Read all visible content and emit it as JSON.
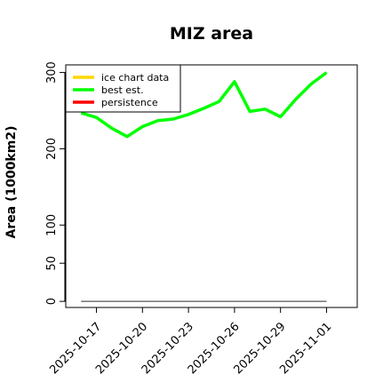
{
  "chart_data": {
    "type": "line",
    "title": "MIZ area",
    "xlabel": "",
    "ylabel": "Area (1000km2)",
    "x_ticks": [
      "2025-10-17",
      "2025-10-20",
      "2025-10-23",
      "2025-10-26",
      "2025-10-29",
      "2025-11-01"
    ],
    "y_ticks": [
      0,
      50,
      100,
      200,
      300
    ],
    "xlim": [
      "2025-10-15",
      "2025-11-03"
    ],
    "ylim": [
      -8,
      310
    ],
    "grid": false,
    "legend_position": "top-left",
    "series": [
      {
        "name": "ice chart data",
        "color": "#FFD700",
        "x": [],
        "y": []
      },
      {
        "name": "best est.",
        "color": "#00FF00",
        "x": [
          "2025-10-16",
          "2025-10-17",
          "2025-10-18",
          "2025-10-19",
          "2025-10-20",
          "2025-10-21",
          "2025-10-22",
          "2025-10-23",
          "2025-10-24",
          "2025-10-25",
          "2025-10-26",
          "2025-10-27",
          "2025-10-28",
          "2025-10-29",
          "2025-10-30",
          "2025-10-31",
          "2025-11-01"
        ],
        "y": [
          247,
          241,
          227,
          216,
          229,
          237,
          239,
          245,
          253,
          262,
          288,
          249,
          252,
          242,
          265,
          285,
          300
        ]
      },
      {
        "name": "persistence",
        "color": "#FF0000",
        "x": [],
        "y": []
      }
    ],
    "reference_line": {
      "color": "#555555",
      "x": [
        "2025-10-16",
        "2025-11-01"
      ],
      "y": [
        0,
        0
      ]
    }
  }
}
